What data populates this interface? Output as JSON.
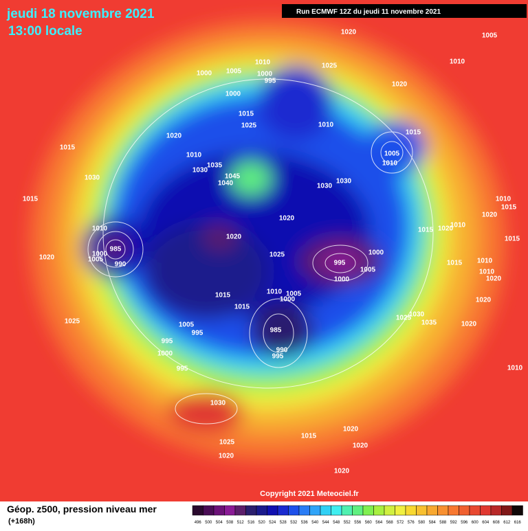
{
  "header": {
    "date": "jeudi 18 novembre 2021",
    "time": "13:00 locale",
    "run": "Run ECMWF 12Z du jeudi 11 novembre 2021"
  },
  "map": {
    "isobar_labels": [
      1020,
      1005,
      1010,
      1010,
      1000,
      1005,
      1000,
      995,
      1025,
      1020,
      1000,
      1015,
      1025,
      1010,
      1015,
      1020,
      1015,
      1005,
      1010,
      1010,
      1035,
      1030,
      1045,
      1040,
      1030,
      1030,
      1030,
      1015,
      1020,
      1010,
      985,
      1000,
      1005,
      990,
      1020,
      1025,
      995,
      1000,
      1005,
      1000,
      1020,
      1015,
      1020,
      1010,
      1015,
      1010,
      1010,
      1020,
      1015,
      1015,
      1010,
      1005,
      1000,
      1020,
      1025,
      1030,
      1035,
      1020,
      1025,
      1005,
      995,
      985,
      995,
      990,
      995,
      1000,
      995,
      1010,
      1030,
      1015,
      1020,
      1025,
      1020,
      1020,
      1020,
      1015,
      1010,
      1020,
      1015
    ],
    "copyright": "Copyright 2021 Meteociel.fr"
  },
  "footer": {
    "title": "Géop. z500, pression niveau mer",
    "lead": "(+168h)"
  },
  "scale": {
    "labels": [
      496,
      500,
      504,
      508,
      512,
      516,
      520,
      524,
      528,
      532,
      536,
      540,
      544,
      548,
      552,
      556,
      560,
      564,
      568,
      572,
      576,
      580,
      584,
      588,
      592,
      596,
      600,
      604,
      608,
      612,
      616
    ],
    "colors": [
      "#2a0a2e",
      "#4a0d55",
      "#6c1278",
      "#8a1b96",
      "#5c1f6b",
      "#2a1f6e",
      "#1a1a8c",
      "#1010b0",
      "#1a2ad0",
      "#1e50ea",
      "#2a7cf5",
      "#30a4f8",
      "#30d0f5",
      "#40eef0",
      "#50f0b0",
      "#60f080",
      "#80f050",
      "#a8f040",
      "#d0f040",
      "#f0f040",
      "#f8d830",
      "#f8c030",
      "#f8a830",
      "#f89030",
      "#f87830",
      "#f06030",
      "#e84830",
      "#e03830",
      "#b82828",
      "#801818",
      "#100808"
    ]
  }
}
